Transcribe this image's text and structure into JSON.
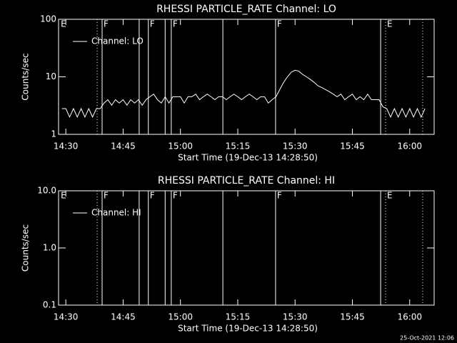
{
  "chart_data": [
    {
      "type": "line",
      "title": "RHESSI PARTICLE_RATE Channel: LO",
      "xlabel": "Start Time (19-Dec-13 14:28:50)",
      "ylabel": "Counts/sec",
      "log_y": true,
      "xlim": [
        868.1,
        966.4
      ],
      "ylim": [
        1,
        100
      ],
      "xticks": [
        {
          "value": 870,
          "label": "14:30"
        },
        {
          "value": 885,
          "label": "14:45"
        },
        {
          "value": 900,
          "label": "15:00"
        },
        {
          "value": 915,
          "label": "15:15"
        },
        {
          "value": 930,
          "label": "15:30"
        },
        {
          "value": 945,
          "label": "15:45"
        },
        {
          "value": 960,
          "label": "16:00"
        }
      ],
      "yticks": [
        1,
        10,
        100
      ],
      "x": [
        869,
        870,
        871,
        872,
        873,
        874,
        875,
        876,
        877,
        878,
        879,
        880,
        881,
        882,
        883,
        884,
        885,
        886,
        887,
        888,
        889,
        890,
        891,
        892,
        893,
        894,
        895,
        896,
        897,
        898,
        899,
        900,
        901,
        902,
        903,
        904,
        905,
        906,
        907,
        908,
        909,
        910,
        911,
        912,
        913,
        914,
        915,
        916,
        917,
        918,
        919,
        920,
        921,
        922,
        923,
        924,
        925,
        926,
        927,
        928,
        929,
        930,
        931,
        932,
        933,
        934,
        935,
        936,
        937,
        938,
        939,
        940,
        941,
        942,
        943,
        944,
        945,
        946,
        947,
        948,
        949,
        950,
        951,
        952,
        953,
        954,
        955,
        956,
        957,
        958,
        959,
        960,
        961,
        962,
        963,
        964
      ],
      "series": [
        {
          "name": "Channel: LO",
          "color": "#ffffff",
          "values": [
            2.8,
            2.8,
            2,
            2.8,
            2,
            2.8,
            2,
            2.8,
            2,
            2.8,
            2.8,
            3.5,
            4,
            3.2,
            4,
            3.5,
            4,
            3.2,
            4,
            3.5,
            4,
            3.2,
            4,
            4.5,
            5,
            4,
            3.5,
            4.5,
            3.5,
            4.5,
            4.5,
            4.5,
            3.5,
            4.5,
            4.5,
            5,
            4,
            4.5,
            5,
            4.5,
            4,
            4.5,
            4.5,
            4,
            4.5,
            5,
            4.5,
            4,
            4.5,
            5,
            4.5,
            4,
            4.5,
            4.5,
            3.5,
            4,
            4.5,
            6,
            8,
            10,
            12,
            13,
            12.5,
            11,
            10,
            9,
            8,
            7,
            6.5,
            6,
            5.5,
            5,
            4.5,
            5,
            4,
            4.5,
            5,
            4,
            4.5,
            4,
            5,
            4,
            4,
            4,
            3,
            2.8,
            2,
            2.8,
            2,
            2.8,
            2,
            2.8,
            2,
            2.8,
            2,
            2.8
          ]
        }
      ],
      "vlines": [
        {
          "x": 878.2,
          "dotted": true
        },
        {
          "x": 879.5,
          "dotted": false
        },
        {
          "x": 889.2,
          "dotted": false
        },
        {
          "x": 891.6,
          "dotted": false
        },
        {
          "x": 896,
          "dotted": false
        },
        {
          "x": 897.6,
          "dotted": false
        },
        {
          "x": 911.1,
          "dotted": false
        },
        {
          "x": 924.9,
          "dotted": false
        },
        {
          "x": 952.4,
          "dotted": false
        },
        {
          "x": 953.7,
          "dotted": true
        },
        {
          "x": 963.4,
          "dotted": true
        }
      ],
      "flags": [
        {
          "x": 868.3,
          "text": "E"
        },
        {
          "x": 879.5,
          "text": "F"
        },
        {
          "x": 891.6,
          "text": "F"
        },
        {
          "x": 897.6,
          "text": "F"
        },
        {
          "x": 924.9,
          "text": "F"
        },
        {
          "x": 953.7,
          "text": "E"
        }
      ]
    },
    {
      "type": "line",
      "title": "RHESSI PARTICLE_RATE Channel: HI",
      "xlabel": "Start Time (19-Dec-13 14:28:50)",
      "ylabel": "Counts/sec",
      "log_y": true,
      "xlim": [
        868.1,
        966.4
      ],
      "ylim": [
        0.1,
        10
      ],
      "xticks": [
        {
          "value": 870,
          "label": "14:30"
        },
        {
          "value": 885,
          "label": "14:45"
        },
        {
          "value": 900,
          "label": "15:00"
        },
        {
          "value": 915,
          "label": "15:15"
        },
        {
          "value": 930,
          "label": "15:30"
        },
        {
          "value": 945,
          "label": "15:45"
        },
        {
          "value": 960,
          "label": "16:00"
        }
      ],
      "yticks": [
        {
          "value": 0.1,
          "label": "0.1"
        },
        {
          "value": 1,
          "label": "1.0"
        },
        {
          "value": 10,
          "label": "10.0"
        }
      ],
      "x": [],
      "series": [
        {
          "name": "Channel: HI",
          "color": "#ffffff",
          "values": []
        }
      ],
      "vlines": [
        {
          "x": 878.2,
          "dotted": true
        },
        {
          "x": 879.5,
          "dotted": false
        },
        {
          "x": 889.2,
          "dotted": false
        },
        {
          "x": 891.6,
          "dotted": false
        },
        {
          "x": 896,
          "dotted": false
        },
        {
          "x": 897.6,
          "dotted": false
        },
        {
          "x": 911.1,
          "dotted": false
        },
        {
          "x": 924.9,
          "dotted": false
        },
        {
          "x": 952.4,
          "dotted": false
        },
        {
          "x": 953.7,
          "dotted": true
        },
        {
          "x": 963.4,
          "dotted": true
        }
      ],
      "flags": [
        {
          "x": 868.3,
          "text": "E"
        },
        {
          "x": 879.5,
          "text": "F"
        },
        {
          "x": 891.6,
          "text": "F"
        },
        {
          "x": 897.6,
          "text": "F"
        },
        {
          "x": 924.9,
          "text": "F"
        },
        {
          "x": 953.7,
          "text": "E"
        }
      ]
    }
  ],
  "footer": "25-Oct-2021 12:06"
}
